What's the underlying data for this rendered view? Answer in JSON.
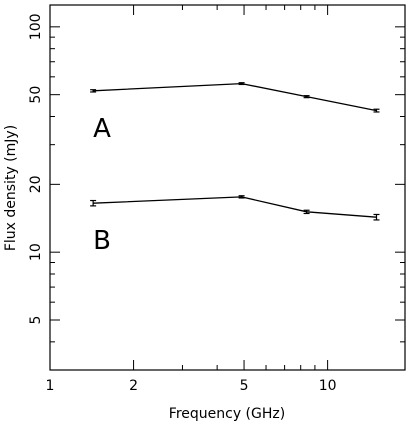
{
  "chart_data": {
    "type": "line",
    "title": "",
    "xlabel": "Frequency (GHz)",
    "ylabel": "Flux density (mJy)",
    "xscale": "log",
    "yscale": "log",
    "xlim": [
      1,
      19
    ],
    "ylim": [
      3,
      125
    ],
    "grid": false,
    "x_ticks": [
      1,
      2,
      5,
      10
    ],
    "x_tick_labels": [
      "1",
      "2",
      "5",
      "10"
    ],
    "y_ticks": [
      5,
      10,
      20,
      50,
      100
    ],
    "y_tick_labels": [
      "5",
      "10",
      "20",
      "50",
      "100"
    ],
    "series": [
      {
        "name": "A",
        "points": [
          {
            "x": 1.43,
            "y": 52,
            "err": 0.6
          },
          {
            "x": 4.9,
            "y": 56,
            "err": 0.5
          },
          {
            "x": 8.4,
            "y": 49,
            "err": 0.5
          },
          {
            "x": 15.0,
            "y": 42.5,
            "err": 0.6
          }
        ]
      },
      {
        "name": "B",
        "points": [
          {
            "x": 1.43,
            "y": 16.5,
            "err": 0.45
          },
          {
            "x": 4.9,
            "y": 17.6,
            "err": 0.2
          },
          {
            "x": 8.4,
            "y": 15.1,
            "err": 0.25
          },
          {
            "x": 15.0,
            "y": 14.3,
            "err": 0.4
          }
        ]
      }
    ]
  }
}
